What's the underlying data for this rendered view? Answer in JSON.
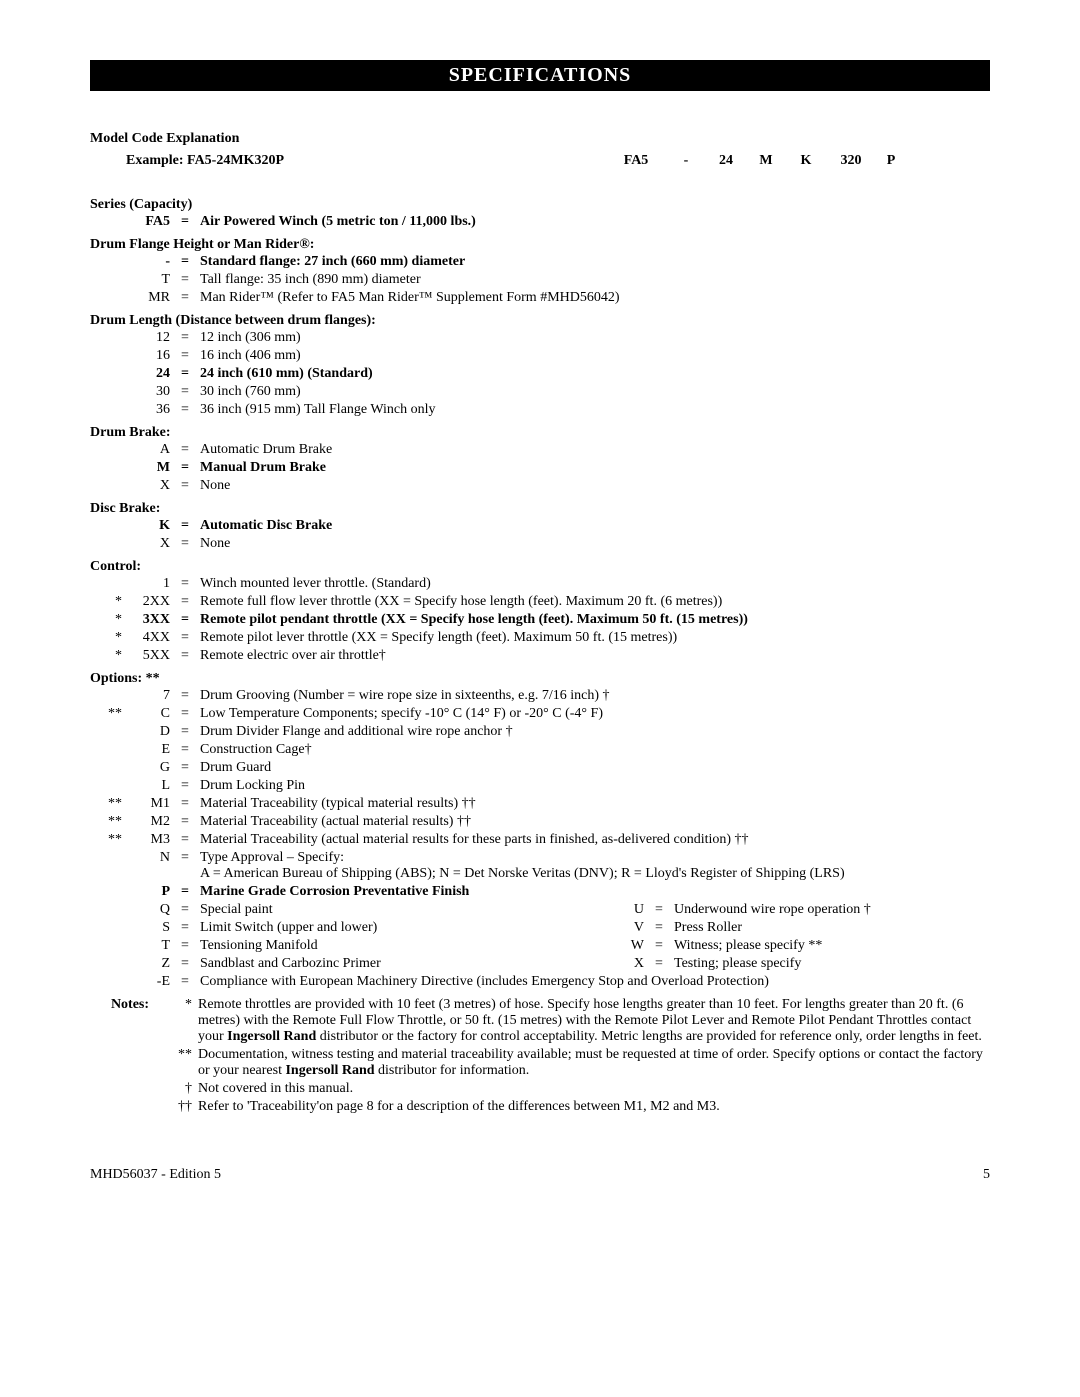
{
  "header": "SPECIFICATIONS",
  "modelCodeExp": "Model Code Explanation",
  "exampleLabel": "Example: FA5-24MK320P",
  "exampleSegs": [
    "FA5",
    "-",
    "24",
    "M",
    "K",
    "320",
    "P"
  ],
  "sections": {
    "series": {
      "title": "Series (Capacity)",
      "rows": [
        {
          "mark": "",
          "code": "FA5",
          "eq": "=",
          "desc": "Air Powered Winch (5 metric ton / 11,000 lbs.)",
          "bold": true
        }
      ]
    },
    "flange": {
      "title": "Drum Flange Height or Man Rider®:",
      "rows": [
        {
          "mark": "",
          "code": "-",
          "eq": "=",
          "desc": "Standard flange: 27 inch (660 mm) diameter",
          "bold": true
        },
        {
          "mark": "",
          "code": "T",
          "eq": "=",
          "desc": "Tall flange: 35 inch (890 mm) diameter",
          "bold": false
        },
        {
          "mark": "",
          "code": "MR",
          "eq": "=",
          "desc": "Man Rider™ (Refer to FA5 Man Rider™ Supplement Form #MHD56042)",
          "bold": false
        }
      ]
    },
    "drumLength": {
      "title": "Drum Length (Distance between drum flanges):",
      "rows": [
        {
          "mark": "",
          "code": "12",
          "eq": "=",
          "desc": "12 inch (306 mm)",
          "bold": false
        },
        {
          "mark": "",
          "code": "16",
          "eq": "=",
          "desc": "16 inch (406 mm)",
          "bold": false
        },
        {
          "mark": "",
          "code": "24",
          "eq": "=",
          "desc": "24 inch (610 mm) (Standard)",
          "bold": true
        },
        {
          "mark": "",
          "code": "30",
          "eq": "=",
          "desc": "30 inch (760 mm)",
          "bold": false
        },
        {
          "mark": "",
          "code": "36",
          "eq": "=",
          "desc": "36 inch (915 mm) Tall Flange Winch only",
          "bold": false
        }
      ]
    },
    "drumBrake": {
      "title": "Drum Brake:",
      "rows": [
        {
          "mark": "",
          "code": "A",
          "eq": "=",
          "desc": "Automatic Drum Brake",
          "bold": false
        },
        {
          "mark": "",
          "code": "M",
          "eq": "=",
          "desc": "Manual Drum Brake",
          "bold": true
        },
        {
          "mark": "",
          "code": "X",
          "eq": "=",
          "desc": "None",
          "bold": false
        }
      ]
    },
    "discBrake": {
      "title": "Disc Brake:",
      "rows": [
        {
          "mark": "",
          "code": "K",
          "eq": "=",
          "desc": "Automatic Disc Brake",
          "bold": true
        },
        {
          "mark": "",
          "code": "X",
          "eq": "=",
          "desc": "None",
          "bold": false
        }
      ]
    },
    "control": {
      "title": "Control:",
      "rows": [
        {
          "mark": "",
          "code": "1",
          "eq": "=",
          "desc": "Winch mounted lever throttle. (Standard)",
          "bold": false
        },
        {
          "mark": "*",
          "code": "2XX",
          "eq": "=",
          "desc": "Remote full flow lever throttle (XX = Specify hose length (feet). Maximum 20 ft. (6 metres))",
          "bold": false
        },
        {
          "mark": "*",
          "code": "3XX",
          "eq": "=",
          "desc": "Remote pilot pendant throttle (XX = Specify hose length (feet). Maximum 50 ft. (15 metres))",
          "bold": true
        },
        {
          "mark": "*",
          "code": "4XX",
          "eq": "=",
          "desc": "Remote pilot lever throttle (XX = Specify length (feet). Maximum 50 ft. (15 metres))",
          "bold": false
        },
        {
          "mark": "*",
          "code": "5XX",
          "eq": "=",
          "desc": "Remote electric over air throttle†",
          "bold": false
        }
      ]
    },
    "options": {
      "title": "Options: **",
      "rows": [
        {
          "mark": "",
          "code": "7",
          "eq": "=",
          "desc": "Drum Grooving (Number = wire rope size in sixteenths, e.g. 7/16 inch) †",
          "bold": false
        },
        {
          "mark": "**",
          "code": "C",
          "eq": "=",
          "desc": "Low Temperature Components; specify -10° C (14° F) or -20° C (-4° F)",
          "bold": false
        },
        {
          "mark": "",
          "code": "D",
          "eq": "=",
          "desc": "Drum Divider Flange and additional wire rope anchor †",
          "bold": false
        },
        {
          "mark": "",
          "code": "E",
          "eq": "=",
          "desc": "Construction Cage†",
          "bold": false
        },
        {
          "mark": "",
          "code": "G",
          "eq": "=",
          "desc": "Drum Guard",
          "bold": false
        },
        {
          "mark": "",
          "code": "L",
          "eq": "=",
          "desc": "Drum Locking Pin",
          "bold": false
        },
        {
          "mark": "**",
          "code": "M1",
          "eq": "=",
          "desc": "Material Traceability (typical material results) ††",
          "bold": false
        },
        {
          "mark": "**",
          "code": "M2",
          "eq": "=",
          "desc": "Material Traceability (actual material results) ††",
          "bold": false
        },
        {
          "mark": "**",
          "code": "M3",
          "eq": "=",
          "desc": "Material Traceability (actual material results for these parts in finished, as-delivered condition) ††",
          "bold": false
        },
        {
          "mark": "",
          "code": "N",
          "eq": "=",
          "desc": "Type Approval – Specify:\nA = American Bureau of Shipping (ABS); N = Det Norske Veritas (DNV); R = Lloyd's Register of Shipping (LRS)",
          "bold": false
        },
        {
          "mark": "",
          "code": "P",
          "eq": "=",
          "desc": "Marine Grade Corrosion Preventative Finish",
          "bold": true
        }
      ],
      "twoColLeft": [
        {
          "mark": "",
          "code": "Q",
          "eq": "=",
          "desc": "Special paint"
        },
        {
          "mark": "",
          "code": "S",
          "eq": "=",
          "desc": "Limit Switch (upper and lower)"
        },
        {
          "mark": "",
          "code": "T",
          "eq": "=",
          "desc": "Tensioning Manifold"
        },
        {
          "mark": "",
          "code": "Z",
          "eq": "=",
          "desc": "Sandblast and Carbozinc Primer"
        }
      ],
      "twoColRight": [
        {
          "code": "U",
          "eq": "=",
          "desc": "Underwound wire rope operation †"
        },
        {
          "code": "V",
          "eq": "=",
          "desc": "Press Roller"
        },
        {
          "code": "W",
          "eq": "=",
          "desc": "Witness; please specify **"
        },
        {
          "code": "X",
          "eq": "=",
          "desc": "Testing; please specify"
        }
      ],
      "lastRow": {
        "mark": "",
        "code": "-E",
        "eq": "=",
        "desc": "Compliance with European Machinery Directive (includes Emergency Stop and Overload Protection)"
      }
    }
  },
  "notesLabel": "Notes:",
  "notes": [
    {
      "sym": "*",
      "text": "Remote throttles are provided with 10 feet (3 metres) of hose. Specify hose lengths greater than 10 feet. For lengths greater than 20 ft. (6 metres) with the Remote Full Flow Throttle, or 50 ft. (15 metres) with the Remote Pilot Lever and Remote Pilot Pendant Throttles contact your Ingersoll Rand distributor or the factory for control acceptability. Metric lengths are provided for reference only, order lengths in feet.",
      "boldSpan": "Ingersoll Rand"
    },
    {
      "sym": "**",
      "text": "Documentation, witness testing and material traceability available; must be requested at time of order. Specify options or contact the factory or your nearest Ingersoll Rand distributor for information.",
      "boldSpan": "Ingersoll Rand"
    },
    {
      "sym": "†",
      "text": "Not covered in this manual."
    },
    {
      "sym": "††",
      "text": "Refer to 'Traceability'on page 8 for a description of the differences between M1, M2 and M3."
    }
  ],
  "footerLeft": "MHD56037 - Edition 5",
  "footerRight": "5"
}
